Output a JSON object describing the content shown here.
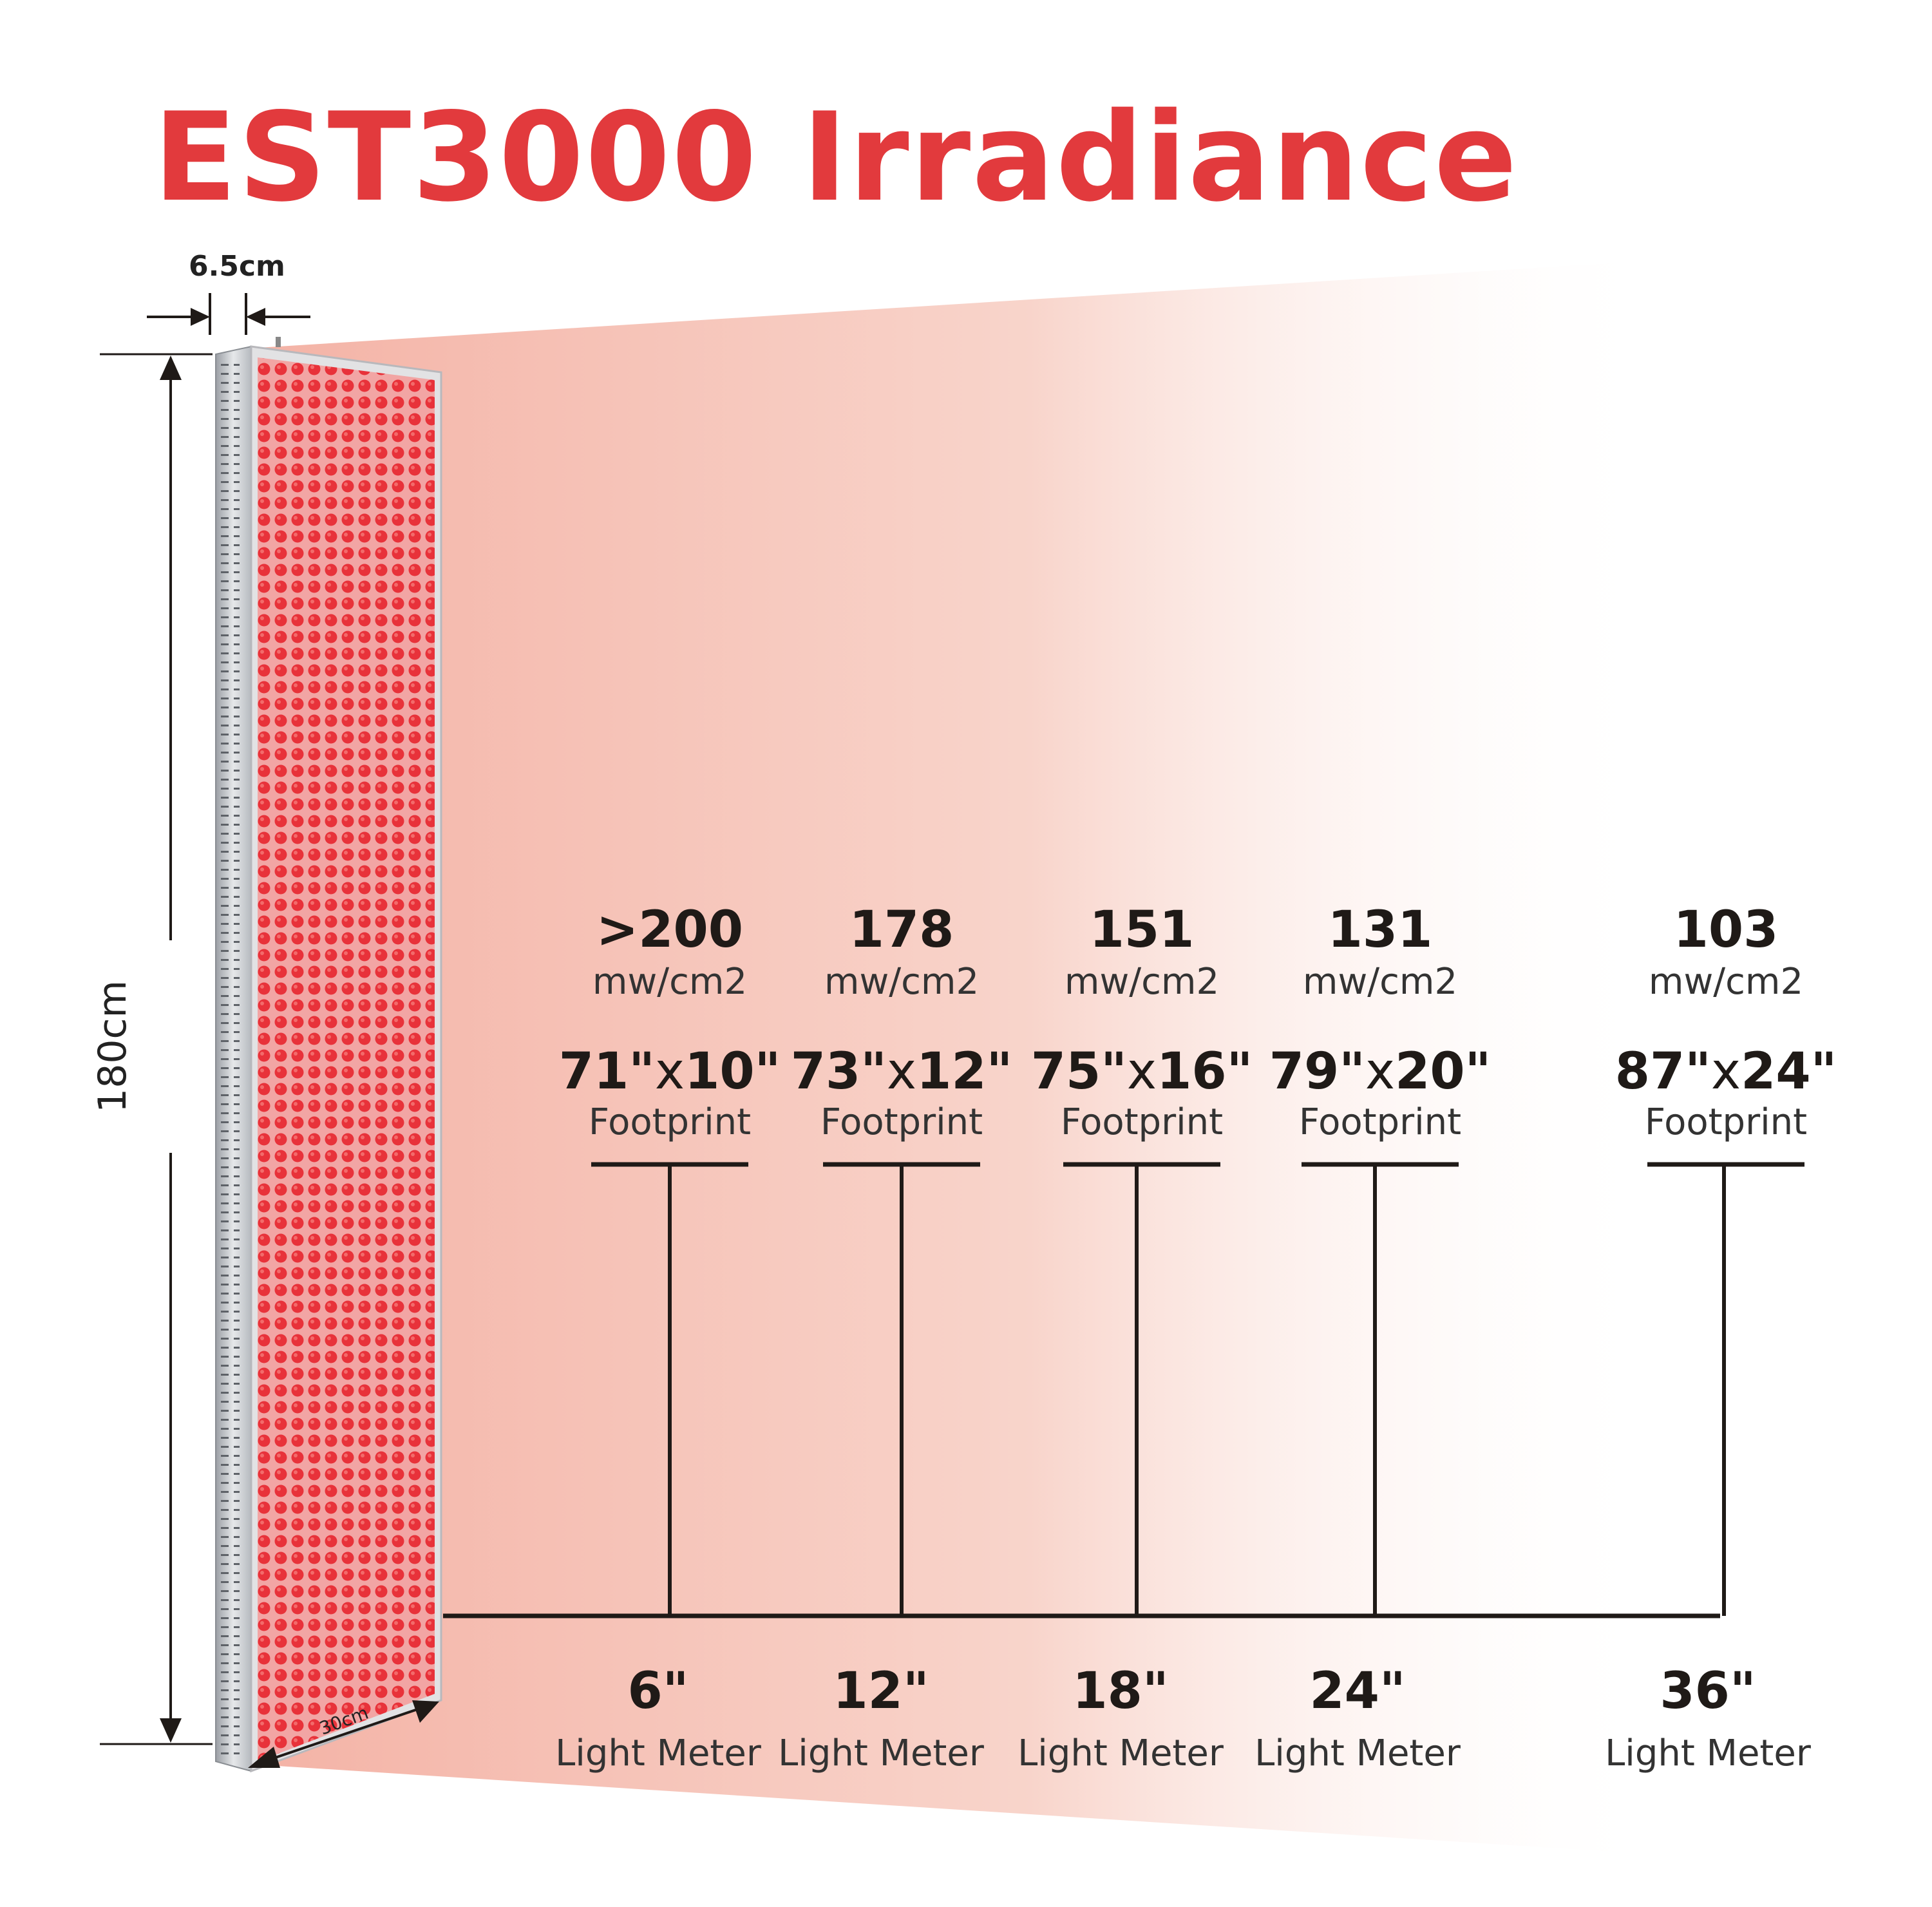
{
  "title": "EST3000 Irradiance",
  "dimensions": {
    "depth": "6.5cm",
    "height": "180cm",
    "width": "30cm"
  },
  "unit": "mw/cm2",
  "footprint_label": "Footprint",
  "meter_label": "Light Meter",
  "measurements": [
    {
      "irradiance": ">200",
      "footprint_a": "71\"",
      "footprint_b": "10\"",
      "distance": "6\""
    },
    {
      "irradiance": "178",
      "footprint_a": "73\"",
      "footprint_b": "12\"",
      "distance": "12\""
    },
    {
      "irradiance": "151",
      "footprint_a": "75\"",
      "footprint_b": "16\"",
      "distance": "18\""
    },
    {
      "irradiance": "131",
      "footprint_a": "79\"",
      "footprint_b": "20\"",
      "distance": "24\""
    },
    {
      "irradiance": "103",
      "footprint_a": "87\"",
      "footprint_b": "24\"",
      "distance": "36\""
    }
  ],
  "colors": {
    "title": "#e23a3d",
    "led": "#e8323a",
    "beam": "#f4b3a6",
    "lines": "#1f1a17"
  }
}
